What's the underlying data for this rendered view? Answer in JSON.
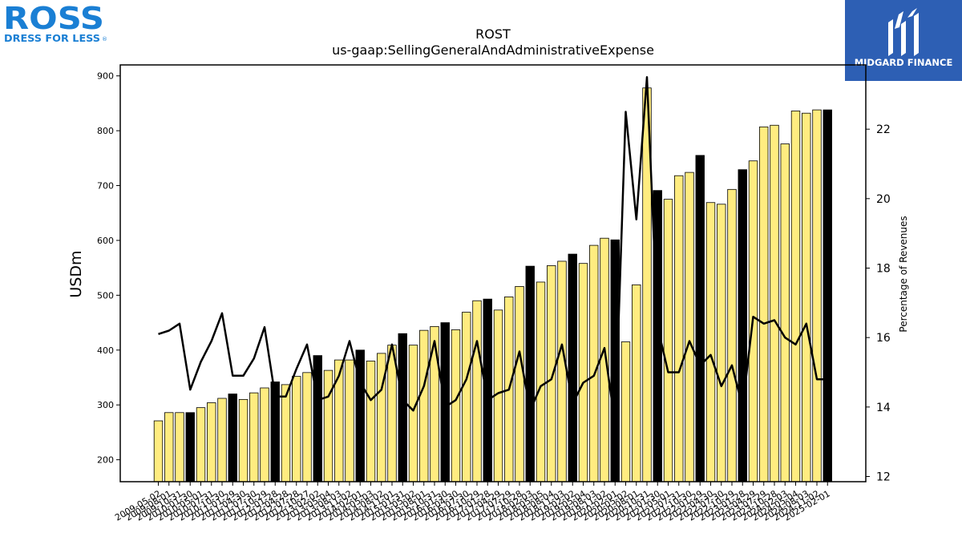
{
  "brand_left": {
    "name": "ROSS",
    "tagline": "DRESS FOR LESS",
    "registered": "®",
    "color": "#1a7fd4"
  },
  "brand_right": {
    "name": "MIDGARD FINANCE",
    "bg_color": "#2d5fb4"
  },
  "colors": {
    "bar_quarter": "#ffec80",
    "bar_annual": "#000000",
    "line": "#000000"
  },
  "chart_data": {
    "type": "bar",
    "title": "ROST",
    "subtitle": "us-gaap:SellingGeneralAndAdministrativeExpense",
    "ylabel": "USDm",
    "y2label": "Percentage of Revenues",
    "ylim": [
      160,
      920
    ],
    "y2lim": [
      11.85,
      23.85
    ],
    "yticks": [
      200,
      300,
      400,
      500,
      600,
      700,
      800,
      900
    ],
    "y2ticks": [
      12,
      14,
      16,
      18,
      20,
      22
    ],
    "grid": false,
    "categories": [
      "2009-05-02",
      "2009-08-01",
      "2009-10-31",
      "2010-01-30",
      "2010-05-01",
      "2010-07-31",
      "2010-10-30",
      "2011-01-29",
      "2011-04-30",
      "2011-07-30",
      "2011-10-29",
      "2012-01-28",
      "2012-04-28",
      "2012-07-28",
      "2012-10-27",
      "2013-02-02",
      "2013-05-04",
      "2013-08-03",
      "2013-11-02",
      "2014-02-01",
      "2014-05-03",
      "2014-08-02",
      "2014-11-01",
      "2015-01-31",
      "2015-05-02",
      "2015-08-01",
      "2015-10-31",
      "2016-01-30",
      "2016-04-30",
      "2016-07-30",
      "2016-10-29",
      "2017-01-28",
      "2017-04-29",
      "2017-07-29",
      "2017-10-28",
      "2018-02-03",
      "2018-05-05",
      "2018-08-04",
      "2018-11-03",
      "2019-02-02",
      "2019-05-04",
      "2019-08-03",
      "2019-11-02",
      "2020-02-01",
      "2020-05-02",
      "2020-08-01",
      "2020-10-31",
      "2021-01-30",
      "2021-05-01",
      "2021-07-31",
      "2021-10-30",
      "2022-01-29",
      "2022-04-30",
      "2022-07-30",
      "2022-10-29",
      "2023-01-28",
      "2023-04-29",
      "2023-07-29",
      "2023-10-28",
      "2024-02-03",
      "2024-05-04",
      "2024-08-03",
      "2024-11-02",
      "2025-02-01"
    ],
    "xtick_labels": [
      "2009-05-02",
      "2009-08-01",
      "2009-10-31",
      "2010-01-30",
      "2010-05-01",
      "2010-07-31",
      "2010-10-30",
      "2011-01-29",
      "2011-04-30",
      "2011-07-30",
      "2011-10-29",
      "2012-01-28",
      "2012-04-28",
      "2012-07-28",
      "2012-10-27",
      "2013-02-02",
      "2013-05-04",
      "2013-08-03",
      "2013-11-02",
      "2014-02-01",
      "2014-05-03",
      "2014-08-02",
      "2014-11-01",
      "2015-01-31",
      "2015-05-02",
      "2015-08-01",
      "2015-10-31",
      "2016-01-30",
      "2016-04-30",
      "2016-07-30",
      "2016-10-29",
      "2017-01-28",
      "2017-04-29",
      "2017-07-29",
      "2017-10-28",
      "2018-02-03",
      "2018-05-05",
      "2018-08-04",
      "2018-11-03",
      "2019-02-02",
      "2019-05-04",
      "2019-08-03",
      "2019-11-02",
      "2020-02-01",
      "2020-05-02",
      "2020-08-01",
      "2020-10-31",
      "2021-01-30",
      "2021-05-01",
      "2021-07-31",
      "2021-10-30",
      "2022-01-29",
      "2022-04-30",
      "2022-07-30",
      "2022-10-29",
      "2023-01-28",
      "2023-04-29",
      "2023-07-29",
      "2023-10-28",
      "2024-02-03",
      "2024-05-04",
      "2024-08-03",
      "2024-11-02",
      "2025-02-01"
    ],
    "series": [
      {
        "values": [
          271,
          286,
          286,
          286,
          295,
          304,
          312,
          320,
          310,
          322,
          331,
          342,
          337,
          352,
          359,
          390,
          363,
          382,
          382,
          400,
          380,
          394,
          409,
          430,
          409,
          436,
          443,
          450,
          437,
          469,
          490,
          493,
          473,
          497,
          516,
          553,
          524,
          554,
          562,
          575,
          558,
          591,
          604,
          601,
          415,
          519,
          878,
          691,
          675,
          718,
          724,
          755,
          669,
          666,
          693,
          729,
          745,
          807,
          810,
          776,
          836,
          832,
          838,
          838
        ],
        "annual": [
          false,
          false,
          false,
          true,
          false,
          false,
          false,
          true,
          false,
          false,
          false,
          true,
          false,
          false,
          false,
          true,
          false,
          false,
          false,
          true,
          false,
          false,
          false,
          true,
          false,
          false,
          false,
          true,
          false,
          false,
          false,
          true,
          false,
          false,
          false,
          true,
          false,
          false,
          false,
          true,
          false,
          false,
          false,
          true,
          false,
          false,
          false,
          true,
          false,
          false,
          false,
          true,
          false,
          false,
          false,
          true,
          false,
          false,
          false,
          false,
          false,
          false,
          false,
          true
        ]
      },
      {
        "axis": "right",
        "type": "line",
        "values": [
          16.1,
          16.2,
          16.4,
          14.5,
          15.3,
          15.9,
          16.7,
          14.9,
          14.9,
          15.4,
          16.3,
          14.3,
          14.3,
          15.1,
          15.8,
          14.2,
          14.3,
          14.9,
          15.9,
          14.7,
          14.2,
          14.5,
          15.8,
          14.2,
          13.9,
          14.6,
          15.9,
          14.0,
          14.2,
          14.8,
          15.9,
          14.2,
          14.4,
          14.5,
          15.6,
          13.9,
          14.6,
          14.8,
          15.8,
          14.1,
          14.7,
          14.9,
          15.7,
          13.5,
          22.5,
          19.4,
          23.5,
          16.3,
          15.0,
          15.0,
          15.9,
          15.2,
          15.5,
          14.6,
          15.2,
          14.0,
          16.6,
          16.4,
          16.5,
          16.0,
          15.8,
          16.4,
          14.8,
          14.8
        ]
      }
    ]
  }
}
